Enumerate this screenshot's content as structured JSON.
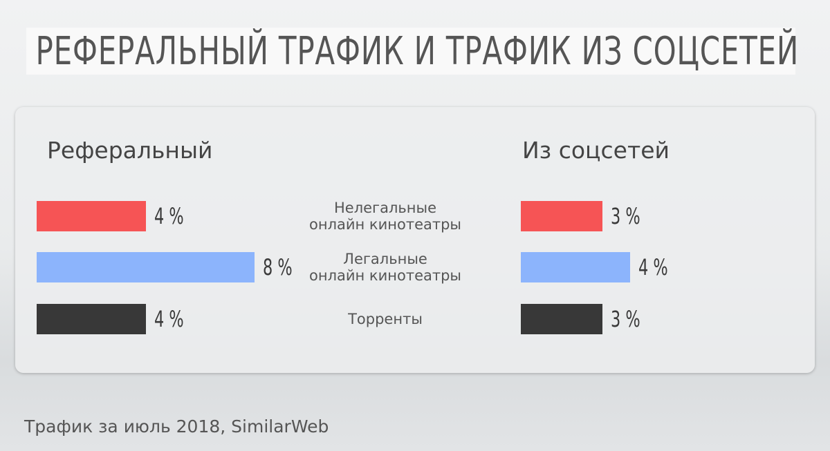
{
  "chart_data": {
    "type": "hbar-pair",
    "title": "РЕФЕРАЛЬНЫЙ ТРАФИК И ТРАФИК ИЗ СОЦСЕТЕЙ",
    "categories": [
      "Нелегальные\nонлайн кинотеатры",
      "Легальные\nонлайн кинотеатры",
      "Торренты"
    ],
    "colors": [
      "#f65455",
      "#8cb4fc",
      "#383838"
    ],
    "xlim": [
      0,
      8
    ],
    "series": [
      {
        "name": "Реферальный",
        "values": [
          4,
          8,
          4
        ],
        "value_labels": [
          "4 %",
          "8 %",
          "4 %"
        ]
      },
      {
        "name": "Из соцсетей",
        "values": [
          3,
          4,
          3
        ],
        "value_labels": [
          "3 %",
          "4 %",
          "3 %"
        ]
      }
    ],
    "source": "Трафик за июль 2018, SimilarWeb"
  }
}
